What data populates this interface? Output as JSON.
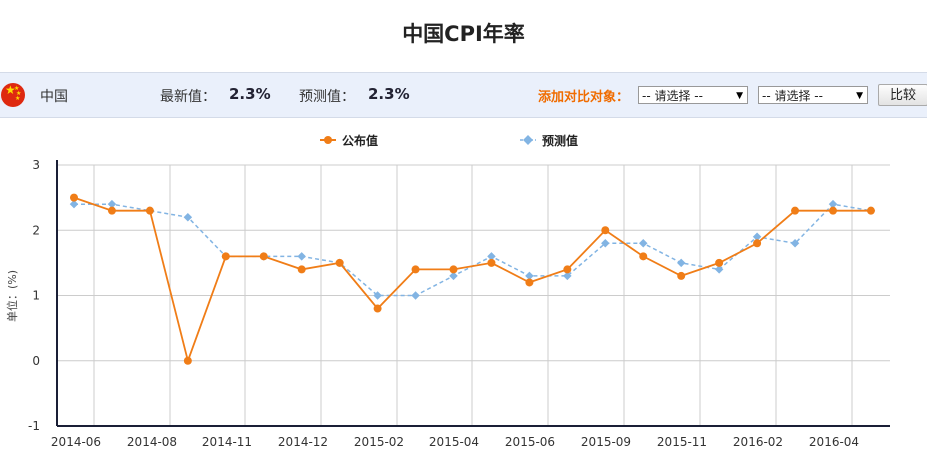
{
  "title": "中国CPI年率",
  "toolbar": {
    "country": "中国",
    "latest_label": "最新值：",
    "latest_value": "2.3%",
    "forecast_label": "预测值：",
    "forecast_value": "2.3%",
    "compare_label": "添加对比对象：",
    "select1": "-- 请选择 --",
    "select2": "-- 请选择 --",
    "compare_button": "比较"
  },
  "colors": {
    "published": "#f07d17",
    "forecast": "#82b4e3",
    "toolbar_bg": "#eaf0fb",
    "accent": "#f06c00"
  },
  "chart_data": {
    "type": "line",
    "ylabel": "单位：(%)",
    "ylim": [
      -1,
      3
    ],
    "yticks": [
      -1,
      0,
      1,
      2,
      3
    ],
    "grid": true,
    "legend": "top-center",
    "x_tick_labels": [
      "2014-06",
      "2014-08",
      "2014-11",
      "2014-12",
      "2015-02",
      "2015-04",
      "2015-06",
      "2015-09",
      "2015-11",
      "2016-02",
      "2016-04"
    ],
    "series": [
      {
        "name": "公布值",
        "style": "solid",
        "values": [
          2.5,
          2.3,
          2.3,
          0.0,
          1.6,
          1.6,
          1.4,
          1.5,
          0.8,
          1.4,
          1.4,
          1.5,
          1.2,
          1.4,
          2.0,
          1.6,
          1.3,
          1.5,
          1.8,
          2.3,
          2.3,
          2.3
        ]
      },
      {
        "name": "预测值",
        "style": "dashed",
        "values": [
          2.4,
          2.4,
          2.3,
          2.2,
          1.6,
          1.6,
          1.6,
          1.5,
          1.0,
          1.0,
          1.3,
          1.6,
          1.3,
          1.3,
          1.8,
          1.8,
          1.5,
          1.4,
          1.9,
          1.8,
          2.4,
          2.3
        ]
      }
    ]
  }
}
